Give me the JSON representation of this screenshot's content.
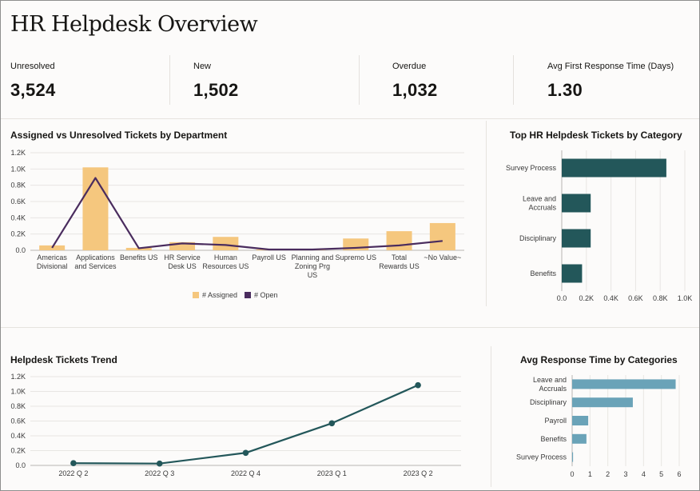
{
  "page": {
    "title": "HR Helpdesk Overview"
  },
  "kpis": [
    {
      "label": "Unresolved",
      "value": "3,524"
    },
    {
      "label": "New",
      "value": "1,502"
    },
    {
      "label": "Overdue",
      "value": "1,032"
    },
    {
      "label": "Avg First Response Time (Days)",
      "value": "1.30"
    }
  ],
  "colors": {
    "assigned": "#f5c77e",
    "open": "#4a2c5e",
    "category_bar": "#23575a",
    "trend": "#23575a",
    "response_bar": "#6aa3b8",
    "grid": "#e8e6e3"
  },
  "chart_data": [
    {
      "id": "dept",
      "type": "bar",
      "title": "Assigned vs Unresolved Tickets by Department",
      "categories": [
        [
          "Americas",
          "Divisional"
        ],
        [
          "Applications",
          "and Services"
        ],
        [
          "Benefits US"
        ],
        [
          "HR Service",
          "Desk US"
        ],
        [
          "Human",
          "Resources US"
        ],
        [
          "Payroll US"
        ],
        [
          "Planning and",
          "Zoning Prg",
          "US"
        ],
        [
          "Supremo US"
        ],
        [
          "Total",
          "Rewards US"
        ],
        [
          "~No Value~"
        ]
      ],
      "series": [
        {
          "name": "# Assigned",
          "type": "bar",
          "values": [
            60,
            1020,
            30,
            100,
            165,
            10,
            10,
            145,
            235,
            335
          ]
        },
        {
          "name": "# Open",
          "type": "line",
          "values": [
            30,
            890,
            25,
            85,
            65,
            10,
            10,
            30,
            60,
            115
          ]
        }
      ],
      "yticks": [
        "0.0",
        "0.2K",
        "0.4K",
        "0.6K",
        "0.8K",
        "1.0K",
        "1.2K"
      ],
      "ylim": [
        0,
        1200
      ],
      "legend": [
        "# Assigned",
        "# Open"
      ]
    },
    {
      "id": "category",
      "type": "bar",
      "orientation": "horizontal",
      "title": "Top HR Helpdesk Tickets by Category",
      "categories": [
        [
          "Survey Process"
        ],
        [
          "Leave and",
          "Accruals"
        ],
        [
          "Disciplinary"
        ],
        [
          "Benefits"
        ]
      ],
      "values": [
        850,
        235,
        235,
        165
      ],
      "xticks": [
        "0.0",
        "0.2K",
        "0.4K",
        "0.6K",
        "0.8K",
        "1.0K"
      ],
      "xlim": [
        0,
        1000
      ]
    },
    {
      "id": "trend",
      "type": "line",
      "title": "Helpdesk Tickets Trend",
      "categories": [
        "2022 Q 2",
        "2022 Q 3",
        "2022 Q 4",
        "2023 Q 1",
        "2023 Q 2"
      ],
      "values": [
        30,
        25,
        170,
        570,
        1085
      ],
      "yticks": [
        "0.0",
        "0.2K",
        "0.4K",
        "0.6K",
        "0.8K",
        "1.0K",
        "1.2K"
      ],
      "ylim": [
        0,
        1200
      ]
    },
    {
      "id": "response",
      "type": "bar",
      "orientation": "horizontal",
      "title": "Avg Response Time by Categories",
      "categories": [
        [
          "Leave and",
          "Accruals"
        ],
        [
          "Disciplinary"
        ],
        [
          "Payroll"
        ],
        [
          "Benefits"
        ],
        [
          "Survey Process"
        ]
      ],
      "values": [
        5.8,
        3.4,
        0.9,
        0.8,
        0.05
      ],
      "xticks": [
        "0",
        "1",
        "2",
        "3",
        "4",
        "5",
        "6"
      ],
      "xlim": [
        0,
        6
      ]
    }
  ]
}
